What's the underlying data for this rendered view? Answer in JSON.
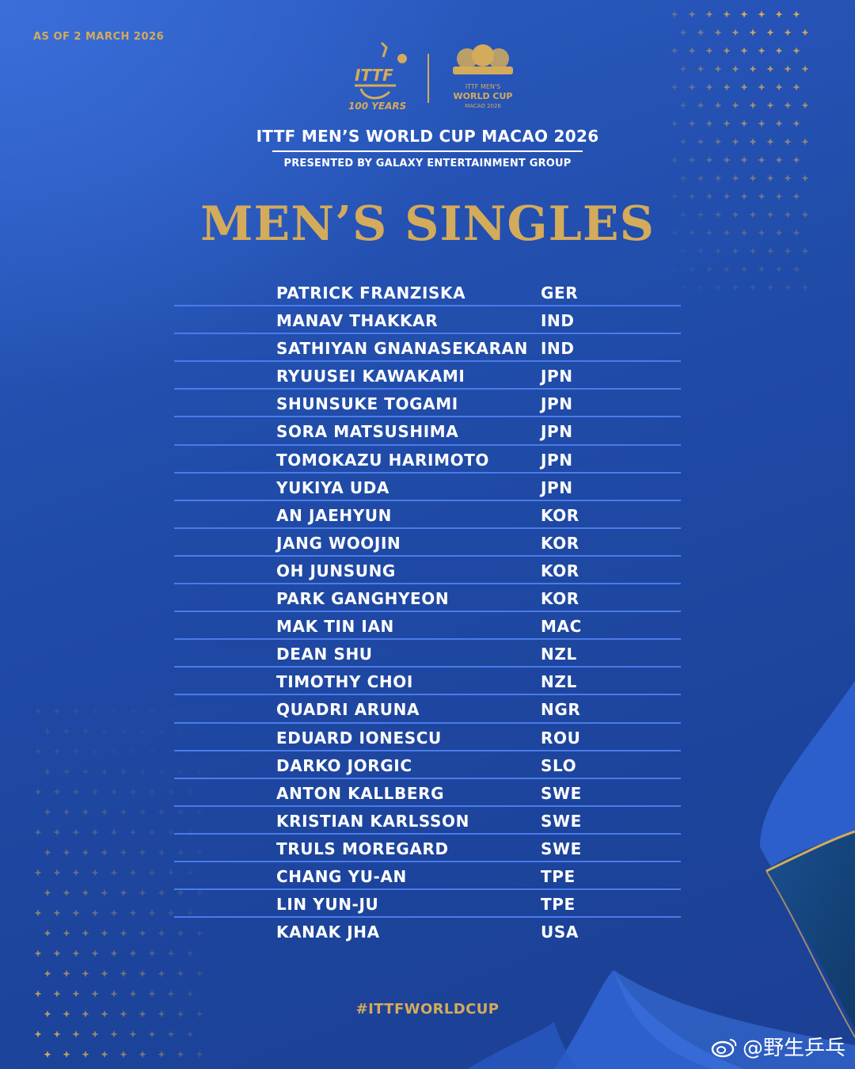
{
  "header": {
    "as_of": "AS OF 2 MARCH 2026",
    "itf_logo_text": "ITTF",
    "itf_years_text": "100 YEARS",
    "wc_logo_line1": "ITTF MEN'S",
    "wc_logo_line2": "WORLD CUP",
    "wc_logo_line3": "MACAO 2026",
    "event_title": "ITTF MEN’S WORLD CUP MACAO 2026",
    "presented_by": "PRESENTED BY GALAXY ENTERTAINMENT GROUP",
    "main_title": "MEN’S SINGLES"
  },
  "players": [
    {
      "name": "PATRICK FRANZISKA",
      "country": "GER"
    },
    {
      "name": "MANAV THAKKAR",
      "country": "IND"
    },
    {
      "name": "SATHIYAN GNANASEKARAN",
      "country": "IND"
    },
    {
      "name": "RYUUSEI KAWAKAMI",
      "country": "JPN"
    },
    {
      "name": "SHUNSUKE TOGAMI",
      "country": "JPN"
    },
    {
      "name": "SORA MATSUSHIMA",
      "country": "JPN"
    },
    {
      "name": "TOMOKAZU HARIMOTO",
      "country": "JPN"
    },
    {
      "name": "YUKIYA UDA",
      "country": "JPN"
    },
    {
      "name": "AN JAEHYUN",
      "country": "KOR"
    },
    {
      "name": "JANG WOOJIN",
      "country": "KOR"
    },
    {
      "name": "OH JUNSUNG",
      "country": "KOR"
    },
    {
      "name": "PARK GANGHYEON",
      "country": "KOR"
    },
    {
      "name": "MAK TIN IAN",
      "country": "MAC"
    },
    {
      "name": "DEAN SHU",
      "country": "NZL"
    },
    {
      "name": "TIMOTHY CHOI",
      "country": "NZL"
    },
    {
      "name": "QUADRI ARUNA",
      "country": "NGR"
    },
    {
      "name": "EDUARD IONESCU",
      "country": "ROU"
    },
    {
      "name": "DARKO JORGIC",
      "country": "SLO"
    },
    {
      "name": "ANTON KALLBERG",
      "country": "SWE"
    },
    {
      "name": "KRISTIAN KARLSSON",
      "country": "SWE"
    },
    {
      "name": "TRULS MOREGARD",
      "country": "SWE"
    },
    {
      "name": "CHANG YU-AN",
      "country": "TPE"
    },
    {
      "name": "LIN YUN-JU",
      "country": "TPE"
    },
    {
      "name": "KANAK JHA",
      "country": "USA"
    }
  ],
  "footer": {
    "hashtag": "#ITTFWORLDCUP",
    "watermark": "@野生乒乓"
  },
  "colors": {
    "gold": "#d4ab5a",
    "background": "#1f4aa6",
    "divider": "#4b7bea",
    "text": "#ffffff"
  }
}
